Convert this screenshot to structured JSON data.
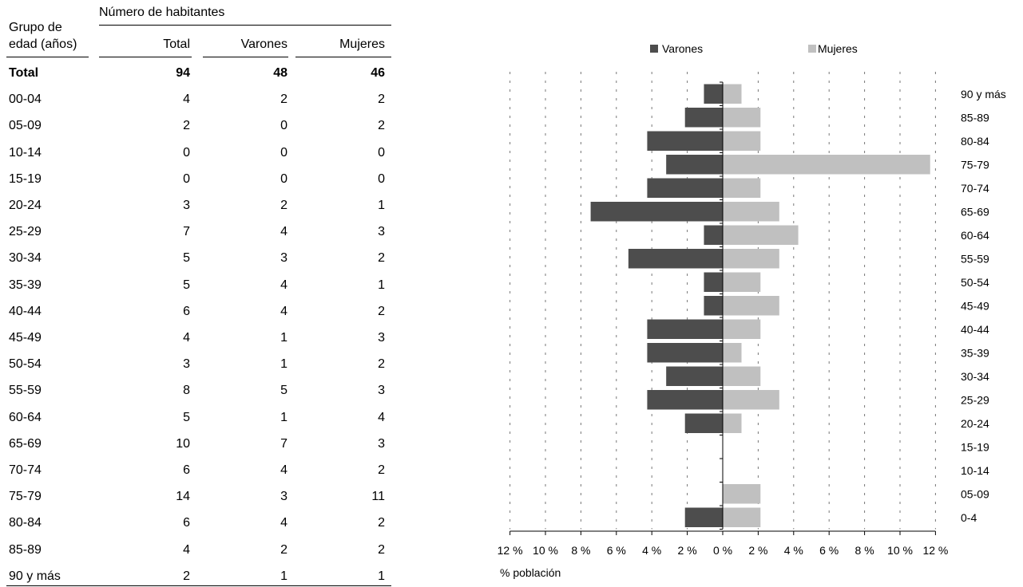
{
  "table": {
    "header": {
      "group_line1": "Grupo de",
      "group_line2": "edad (años)",
      "number_label": "Número de habitantes",
      "total": "Total",
      "male": "Varones",
      "female": "Mujeres"
    },
    "rows": [
      {
        "group": "Total",
        "total": "94",
        "male": "48",
        "female": "46"
      },
      {
        "group": "00-04",
        "total": "4",
        "male": "2",
        "female": "2"
      },
      {
        "group": "05-09",
        "total": "2",
        "male": "0",
        "female": "2"
      },
      {
        "group": "10-14",
        "total": "0",
        "male": "0",
        "female": "0"
      },
      {
        "group": "15-19",
        "total": "0",
        "male": "0",
        "female": "0"
      },
      {
        "group": "20-24",
        "total": "3",
        "male": "2",
        "female": "1"
      },
      {
        "group": "25-29",
        "total": "7",
        "male": "4",
        "female": "3"
      },
      {
        "group": "30-34",
        "total": "5",
        "male": "3",
        "female": "2"
      },
      {
        "group": "35-39",
        "total": "5",
        "male": "4",
        "female": "1"
      },
      {
        "group": "40-44",
        "total": "6",
        "male": "4",
        "female": "2"
      },
      {
        "group": "45-49",
        "total": "4",
        "male": "1",
        "female": "3"
      },
      {
        "group": "50-54",
        "total": "3",
        "male": "1",
        "female": "2"
      },
      {
        "group": "55-59",
        "total": "8",
        "male": "5",
        "female": "3"
      },
      {
        "group": "60-64",
        "total": "5",
        "male": "1",
        "female": "4"
      },
      {
        "group": "65-69",
        "total": "10",
        "male": "7",
        "female": "3"
      },
      {
        "group": "70-74",
        "total": "6",
        "male": "4",
        "female": "2"
      },
      {
        "group": "75-79",
        "total": "14",
        "male": "3",
        "female": "11"
      },
      {
        "group": "80-84",
        "total": "6",
        "male": "4",
        "female": "2"
      },
      {
        "group": "85-89",
        "total": "4",
        "male": "2",
        "female": "2"
      },
      {
        "group": "90 y más",
        "total": "2",
        "male": "1",
        "female": "1"
      }
    ]
  },
  "chart_data": {
    "type": "bar",
    "orientation": "horizontal-population-pyramid",
    "categories": [
      "90 y más",
      "85-89",
      "80-84",
      "75-79",
      "70-74",
      "65-69",
      "60-64",
      "55-59",
      "50-54",
      "45-49",
      "40-44",
      "35-39",
      "30-34",
      "25-29",
      "20-24",
      "15-19",
      "10-14",
      "05-09",
      "0-4"
    ],
    "series": [
      {
        "name": "Varones",
        "color": "#4d4d4d",
        "values": [
          1.06,
          2.13,
          4.26,
          3.19,
          4.26,
          7.45,
          1.06,
          5.32,
          1.06,
          1.06,
          4.26,
          4.26,
          3.19,
          4.26,
          2.13,
          0,
          0,
          0,
          2.13
        ]
      },
      {
        "name": "Mujeres",
        "color": "#c0c0c0",
        "values": [
          1.06,
          2.13,
          2.13,
          11.7,
          2.13,
          3.19,
          4.26,
          3.19,
          2.13,
          3.19,
          2.13,
          1.06,
          2.13,
          3.19,
          1.06,
          0,
          0,
          2.13,
          2.13
        ]
      }
    ],
    "xlabel": "% población",
    "xticks": [
      "12 %",
      "10 %",
      "8 %",
      "6 %",
      "4 %",
      "2 %",
      "0 %",
      "2 %",
      "4 %",
      "6 %",
      "8 %",
      "10 %",
      "12 %"
    ],
    "xlim": [
      -12,
      12
    ],
    "grid": true,
    "legend": "top"
  }
}
